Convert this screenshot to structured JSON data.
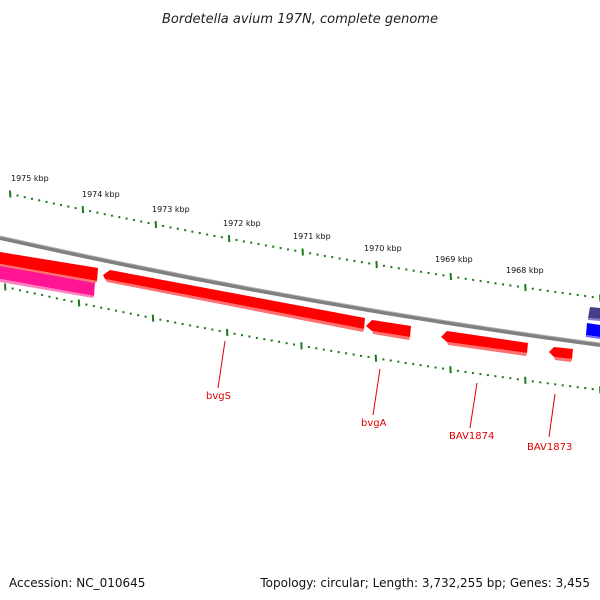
{
  "title": "Bordetella avium 197N, complete genome",
  "ruler_labels": [
    "1975 kbp",
    "1974 kbp",
    "1973 kbp",
    "1972 kbp",
    "1971 kbp",
    "1970 kbp",
    "1969 kbp",
    "1968 kbp"
  ],
  "genes": [
    {
      "name": "bvgS",
      "color": "#ff0000"
    },
    {
      "name": "bvgA",
      "color": "#ff0000"
    },
    {
      "name": "BAV1874",
      "color": "#ff0000"
    },
    {
      "name": "BAV1873",
      "color": "#ff0000"
    }
  ],
  "colors": {
    "backbone": "#808080",
    "gene_red": "#ff0000",
    "gene_pink": "#ff1493",
    "gene_blue": "#0000ff",
    "gene_navy": "#483d8b",
    "ticks": "#1a7a1a",
    "label": "#e00000"
  },
  "footer": {
    "accession": "Accession: NC_010645",
    "summary": "Topology: circular; Length: 3,732,255 bp; Genes: 3,455"
  }
}
